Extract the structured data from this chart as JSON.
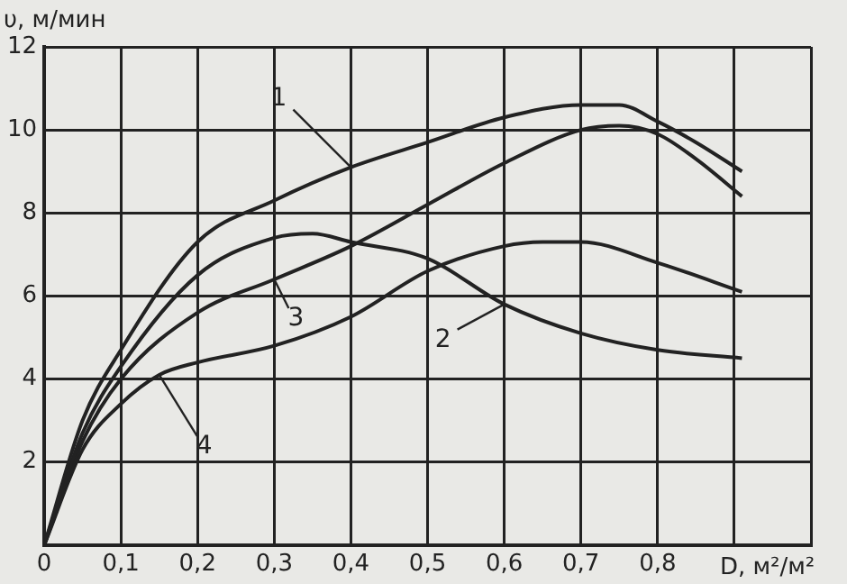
{
  "chart_data": {
    "type": "line",
    "xlabel": "D, м²/м²",
    "ylabel": "υ, м/мин",
    "xlim": [
      0,
      1.0
    ],
    "ylim": [
      0,
      12
    ],
    "xticks": [
      {
        "value": 0,
        "label": "0"
      },
      {
        "value": 0.1,
        "label": "0,1"
      },
      {
        "value": 0.2,
        "label": "0,2"
      },
      {
        "value": 0.3,
        "label": "0,3"
      },
      {
        "value": 0.4,
        "label": "0,4"
      },
      {
        "value": 0.5,
        "label": "0,5"
      },
      {
        "value": 0.6,
        "label": "0,6"
      },
      {
        "value": 0.7,
        "label": "0,7"
      },
      {
        "value": 0.8,
        "label": "0,8"
      },
      {
        "value": 0.9,
        "label": null
      },
      {
        "value": 1.0,
        "label": null
      }
    ],
    "yticks": [
      {
        "value": 0,
        "label": null
      },
      2,
      4,
      6,
      8,
      10,
      12
    ],
    "grid": true,
    "marker": "none",
    "line_style": "solid",
    "series": [
      {
        "name": "1",
        "color": "#222222",
        "x": [
          0,
          0.05,
          0.1,
          0.2,
          0.3,
          0.4,
          0.5,
          0.6,
          0.7,
          0.75,
          0.8,
          0.85,
          0.91
        ],
        "values": [
          0,
          3.0,
          4.7,
          7.3,
          8.3,
          9.1,
          9.7,
          10.3,
          10.6,
          10.6,
          10.2,
          9.7,
          9.0
        ]
      },
      {
        "name": "2",
        "color": "#222222",
        "x": [
          0,
          0.05,
          0.1,
          0.2,
          0.3,
          0.35,
          0.4,
          0.5,
          0.6,
          0.7,
          0.8,
          0.91
        ],
        "values": [
          0,
          2.7,
          4.3,
          6.5,
          7.4,
          7.5,
          7.3,
          6.9,
          5.8,
          5.1,
          4.7,
          4.5
        ]
      },
      {
        "name": "3",
        "color": "#222222",
        "x": [
          0,
          0.05,
          0.1,
          0.2,
          0.3,
          0.4,
          0.5,
          0.6,
          0.7,
          0.75,
          0.8,
          0.85,
          0.91
        ],
        "values": [
          0,
          2.5,
          4.0,
          5.6,
          6.4,
          7.2,
          8.2,
          9.2,
          10.0,
          10.1,
          9.9,
          9.3,
          8.4
        ]
      },
      {
        "name": "4",
        "color": "#222222",
        "x": [
          0,
          0.05,
          0.1,
          0.15,
          0.2,
          0.3,
          0.4,
          0.5,
          0.6,
          0.65,
          0.7,
          0.8,
          0.91
        ],
        "values": [
          0,
          2.3,
          3.4,
          4.1,
          4.4,
          4.8,
          5.5,
          6.6,
          7.2,
          7.3,
          7.3,
          6.8,
          6.1
        ]
      }
    ]
  }
}
